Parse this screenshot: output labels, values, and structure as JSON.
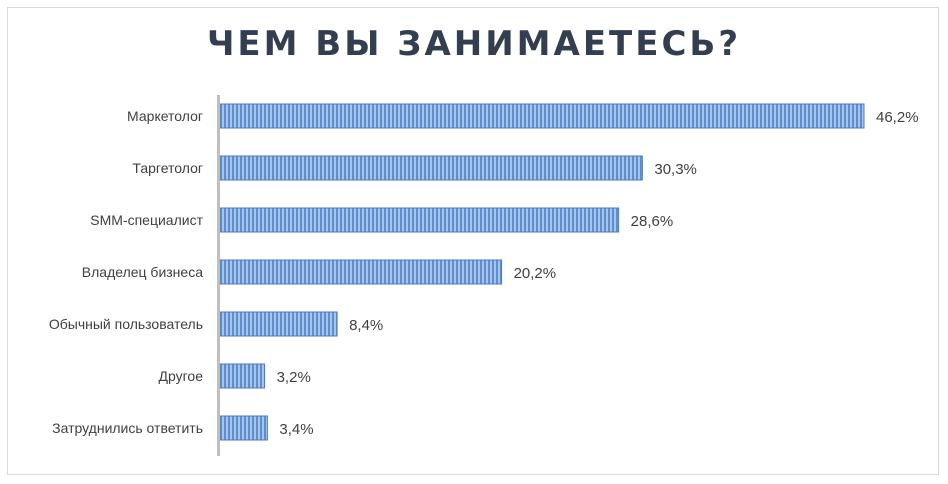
{
  "chart_data": {
    "type": "bar",
    "orientation": "horizontal",
    "title": "ЧЕМ ВЫ ЗАНИМАЕТЕСЬ?",
    "categories": [
      "Маркетолог",
      "Таргетолог",
      "SMM-специалист",
      "Владелец бизнеса",
      "Обычный пользователь",
      "Другое",
      "Затруднились ответить"
    ],
    "values": [
      46.2,
      30.3,
      28.6,
      20.2,
      8.4,
      3.2,
      3.4
    ],
    "labels": [
      "46,2%",
      "30,3%",
      "28,6%",
      "20,2%",
      "8,4%",
      "3,2%",
      "3,4%"
    ],
    "xlabel": "",
    "ylabel": "",
    "xlim": [
      0,
      46.2
    ],
    "grid": false,
    "legend": "none",
    "colors": {
      "bar_light": "#a9c4e8",
      "bar_dark": "#5b8fd0",
      "border": "#4a7ebf",
      "axis": "#bfbfbf",
      "text": "#404040",
      "title": "#333f50"
    }
  }
}
